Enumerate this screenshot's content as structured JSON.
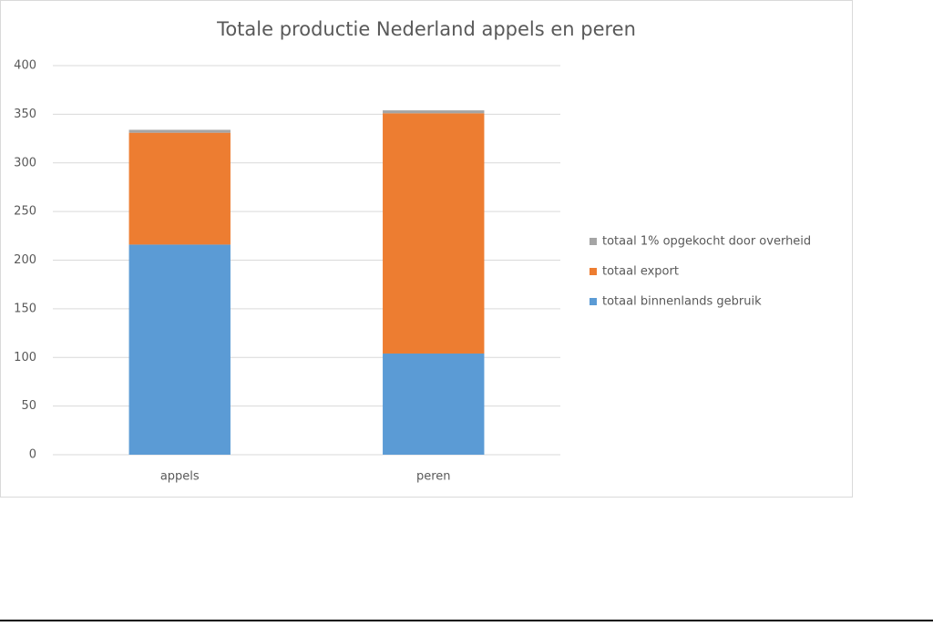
{
  "chart_data": {
    "type": "stacked_bar",
    "title": "Totale productie Nederland appels en peren",
    "categories": [
      "appels",
      "peren"
    ],
    "series": [
      {
        "name": "totaal binnenlands gebruik",
        "color": "#5b9bd5",
        "values": [
          216,
          104
        ]
      },
      {
        "name": "totaal export",
        "color": "#ed7d31",
        "values": [
          115,
          247
        ]
      },
      {
        "name": "totaal 1% opgekocht door overheid",
        "color": "#a5a5a5",
        "values": [
          3,
          3
        ]
      }
    ],
    "ylim": [
      0,
      400
    ],
    "yticks": [
      0,
      50,
      100,
      150,
      200,
      250,
      300,
      350,
      400
    ],
    "grid": true,
    "legend": "right"
  }
}
